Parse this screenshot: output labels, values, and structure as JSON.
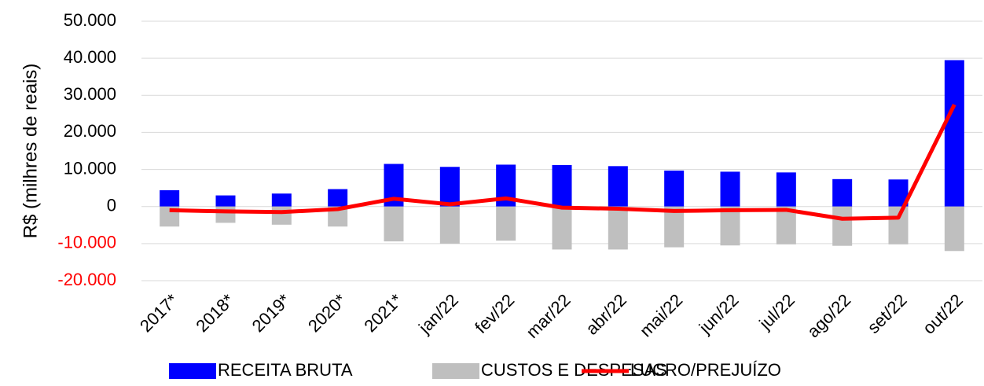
{
  "chart_data": {
    "type": "bar_line",
    "y_label": "R$ (milhres de reais)",
    "categories": [
      "2017*",
      "2018*",
      "2019*",
      "2020*",
      "2021*",
      "jan/22",
      "fev/22",
      "mar/22",
      "abr/22",
      "mai/22",
      "jun/22",
      "jul/22",
      "ago/22",
      "set/22",
      "out/22"
    ],
    "series": [
      {
        "name": "RECEITA BRUTA",
        "type": "bar",
        "color": "#0000ff",
        "values": [
          4400,
          3000,
          3500,
          4700,
          11500,
          10700,
          11300,
          11200,
          10900,
          9700,
          9400,
          9200,
          7400,
          7300,
          39500
        ]
      },
      {
        "name": "CUSTOS E DESPESAS",
        "type": "bar",
        "color": "#bfbfbf",
        "values": [
          -5400,
          -4400,
          -4900,
          -5400,
          -9400,
          -10000,
          -9200,
          -11600,
          -11600,
          -11000,
          -10500,
          -10200,
          -10600,
          -10200,
          -12000
        ]
      },
      {
        "name": "LUCRO/PREJUÍZO",
        "type": "line",
        "color": "#ff0000",
        "values": [
          -1000,
          -1300,
          -1500,
          -700,
          2100,
          600,
          2200,
          -300,
          -600,
          -1200,
          -1000,
          -900,
          -3300,
          -3000,
          27500
        ]
      }
    ],
    "ylim": [
      -20000,
      50000
    ],
    "yticks": [
      {
        "value": -20000,
        "label": "-20.000"
      },
      {
        "value": -10000,
        "label": "-10.000"
      },
      {
        "value": 0,
        "label": "0"
      },
      {
        "value": 10000,
        "label": "10.000"
      },
      {
        "value": 20000,
        "label": "20.000"
      },
      {
        "value": 30000,
        "label": "30.000"
      },
      {
        "value": 40000,
        "label": "40.000"
      },
      {
        "value": 50000,
        "label": "50.000"
      }
    ],
    "negative_tick_color": "#ff0000",
    "grid": true,
    "legend": "bottom"
  }
}
